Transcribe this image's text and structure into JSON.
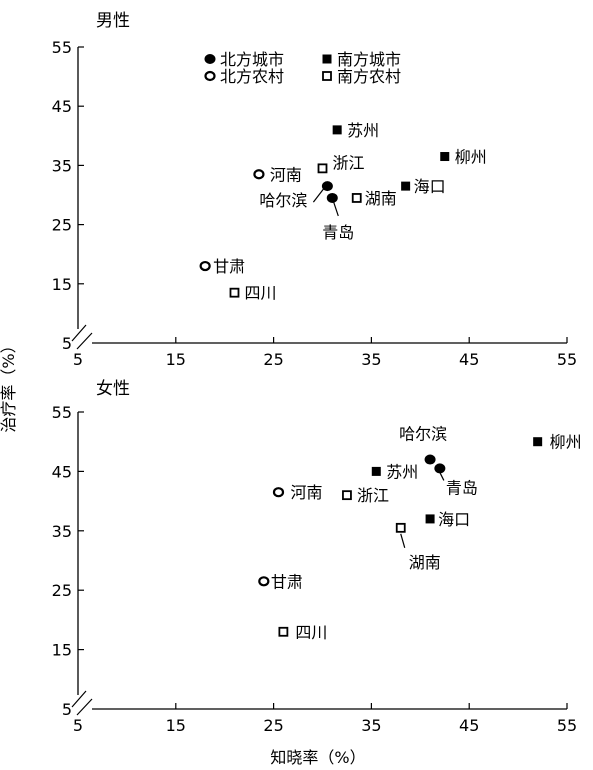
{
  "chart_data": [
    {
      "type": "scatter",
      "title": "男性",
      "xlim": [
        5,
        55
      ],
      "ylim": [
        5,
        55
      ],
      "xticks": [
        5,
        15,
        25,
        35,
        45,
        55
      ],
      "yticks": [
        5,
        15,
        25,
        35,
        45,
        55
      ],
      "legend": [
        "北方城市",
        "北方农村",
        "南方城市",
        "南方农村"
      ],
      "points": [
        {
          "label": "苏州",
          "group": "南方城市",
          "x": 31.5,
          "y": 41
        },
        {
          "label": "柳州",
          "group": "南方城市",
          "x": 42.5,
          "y": 36.5
        },
        {
          "label": "海口",
          "group": "南方城市",
          "x": 38.5,
          "y": 31.5
        },
        {
          "label": "浙江",
          "group": "南方农村",
          "x": 30,
          "y": 34.5
        },
        {
          "label": "湖南",
          "group": "南方农村",
          "x": 33.5,
          "y": 29.5
        },
        {
          "label": "四川",
          "group": "南方农村",
          "x": 21,
          "y": 13.5
        },
        {
          "label": "河南",
          "group": "北方农村",
          "x": 23.5,
          "y": 33.5
        },
        {
          "label": "甘肃",
          "group": "北方农村",
          "x": 18,
          "y": 18
        },
        {
          "label": "哈尔滨",
          "group": "北方城市",
          "x": 30.5,
          "y": 31.5
        },
        {
          "label": "青岛",
          "group": "北方城市",
          "x": 31,
          "y": 29.5
        }
      ]
    },
    {
      "type": "scatter",
      "title": "女性",
      "xlim": [
        5,
        55
      ],
      "ylim": [
        5,
        55
      ],
      "xticks": [
        5,
        15,
        25,
        35,
        45,
        55
      ],
      "yticks": [
        5,
        15,
        25,
        35,
        45,
        55
      ],
      "points": [
        {
          "label": "柳州",
          "group": "南方城市",
          "x": 52,
          "y": 50
        },
        {
          "label": "苏州",
          "group": "南方城市",
          "x": 35.5,
          "y": 45
        },
        {
          "label": "海口",
          "group": "南方城市",
          "x": 41,
          "y": 37
        },
        {
          "label": "浙江",
          "group": "南方农村",
          "x": 32.5,
          "y": 41
        },
        {
          "label": "湖南",
          "group": "南方农村",
          "x": 38,
          "y": 35.5
        },
        {
          "label": "四川",
          "group": "南方农村",
          "x": 26,
          "y": 18
        },
        {
          "label": "河南",
          "group": "北方农村",
          "x": 25.5,
          "y": 41.5
        },
        {
          "label": "甘肃",
          "group": "北方农村",
          "x": 24,
          "y": 26.5
        },
        {
          "label": "哈尔滨",
          "group": "北方城市",
          "x": 41,
          "y": 47
        },
        {
          "label": "青岛",
          "group": "北方城市",
          "x": 42,
          "y": 45.5
        }
      ]
    }
  ],
  "axes": {
    "xlabel": "知晓率（%）",
    "ylabel": "治疗率（%）"
  },
  "marker_styles": {
    "北方城市": "filled-circle",
    "北方农村": "open-circle",
    "南方城市": "filled-square",
    "南方农村": "open-square"
  }
}
